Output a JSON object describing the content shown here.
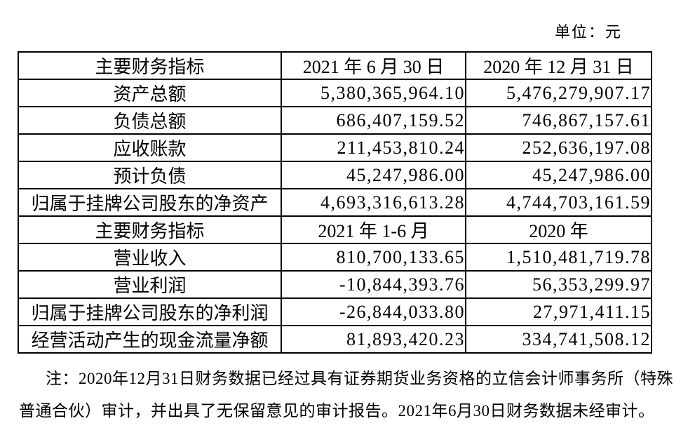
{
  "unit_label": "单位：元",
  "table": {
    "sections": [
      {
        "header": {
          "indicator": "主要财务指标",
          "col1": "2021 年 6 月 30 日",
          "col2": "2020 年 12 月 31 日"
        },
        "rows": [
          {
            "label": "资产总额",
            "v1": "5,380,365,964.10",
            "v2": "5,476,279,907.17"
          },
          {
            "label": "负债总额",
            "v1": "686,407,159.52",
            "v2": "746,867,157.61"
          },
          {
            "label": "应收账款",
            "v1": "211,453,810.24",
            "v2": "252,636,197.08"
          },
          {
            "label": "预计负债",
            "v1": "45,247,986.00",
            "v2": "45,247,986.00"
          },
          {
            "label": "归属于挂牌公司股东的净资产",
            "v1": "4,693,316,613.28",
            "v2": "4,744,703,161.59"
          }
        ]
      },
      {
        "header": {
          "indicator": "主要财务指标",
          "col1": "2021 年 1-6 月",
          "col2": "2020 年"
        },
        "rows": [
          {
            "label": "营业收入",
            "v1": "810,700,133.65",
            "v2": "1,510,481,719.78"
          },
          {
            "label": "营业利润",
            "v1": "-10,844,393.76",
            "v2": "56,353,299.97"
          },
          {
            "label": "归属于挂牌公司股东的净利润",
            "v1": "-26,844,033.80",
            "v2": "27,971,411.15"
          },
          {
            "label": "经营活动产生的现金流量净额",
            "v1": "81,893,420.23",
            "v2": "334,741,508.12"
          }
        ]
      }
    ]
  },
  "note_lines": [
    "注：2020年12月31日财务数据已经过具有证券期货业务资格的立信会计师事务所（特殊",
    "普通合伙）审计，并出具了无保留意见的审计报告。2021年6月30日财务数据未经审计。"
  ],
  "colors": {
    "text": "#000000",
    "background": "#ffffff",
    "border": "#000000"
  }
}
